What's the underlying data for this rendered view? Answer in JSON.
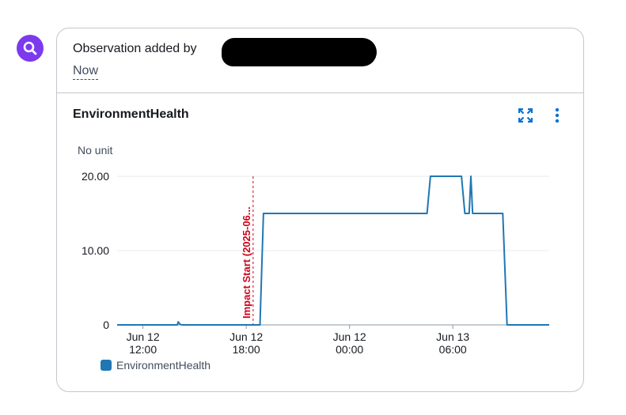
{
  "avatar": {
    "icon": "search-icon",
    "color": "#7c3aed"
  },
  "observation": {
    "text": "Observation added by",
    "redacted": true,
    "time_label": "Now"
  },
  "widget": {
    "title": "EnvironmentHealth",
    "actions": {
      "fullscreen_icon": "expand-icon",
      "menu_icon": "more-vertical-icon"
    }
  },
  "chart_data": {
    "type": "line",
    "title": "EnvironmentHealth",
    "ylabel": "No unit",
    "ylim": [
      0,
      20
    ],
    "y_ticks": [
      "0",
      "10.00",
      "20.00"
    ],
    "x_ticks": [
      {
        "day": "Jun 12",
        "time": "12:00"
      },
      {
        "day": "Jun 12",
        "time": "18:00"
      },
      {
        "day": "Jun 12",
        "time": "00:00"
      },
      {
        "day": "Jun 13",
        "time": "06:00"
      }
    ],
    "annotation": {
      "label": "Impact Start (2025-06...",
      "color": "#d0021b",
      "x_hours": 18.4
    },
    "series": [
      {
        "name": "EnvironmentHealth",
        "color": "#1f77b4",
        "points": [
          [
            10.5,
            0
          ],
          [
            13.5,
            0
          ],
          [
            14.0,
            0
          ],
          [
            14.05,
            0.4
          ],
          [
            14.15,
            0.1
          ],
          [
            14.25,
            0
          ],
          [
            18.8,
            0
          ],
          [
            19.0,
            15
          ],
          [
            28.5,
            15
          ],
          [
            28.7,
            20
          ],
          [
            30.5,
            20
          ],
          [
            30.7,
            15
          ],
          [
            30.95,
            15
          ],
          [
            31.05,
            20
          ],
          [
            31.15,
            15
          ],
          [
            32.9,
            15
          ],
          [
            33.15,
            0
          ],
          [
            35.6,
            0
          ]
        ]
      }
    ],
    "legend": "bottom-left",
    "grid": true
  }
}
